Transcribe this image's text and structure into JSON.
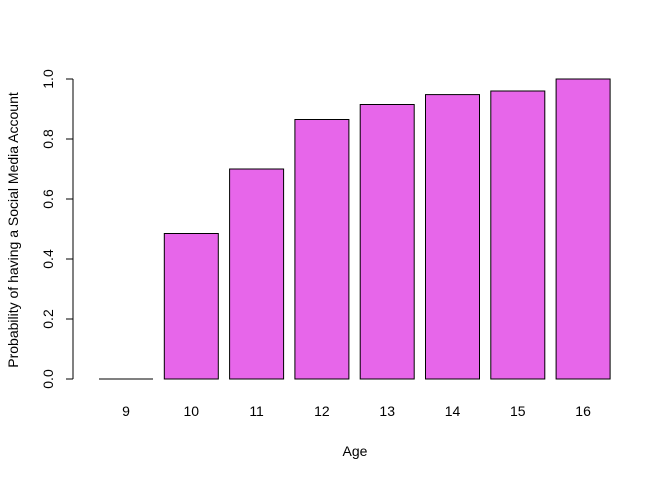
{
  "chart_data": {
    "type": "bar",
    "title": "",
    "xlabel": "Age",
    "ylabel": "Probability of having a Social Media Account",
    "categories": [
      "9",
      "10",
      "11",
      "12",
      "13",
      "14",
      "15",
      "16"
    ],
    "values": [
      0.0,
      0.485,
      0.7,
      0.865,
      0.915,
      0.948,
      0.96,
      1.0
    ],
    "ylim": [
      0,
      1
    ],
    "yticks": [
      0.0,
      0.2,
      0.4,
      0.6,
      0.8,
      1.0
    ],
    "ytick_labels": [
      "0.0",
      "0.2",
      "0.4",
      "0.6",
      "0.8",
      "1.0"
    ],
    "bar_color": "#E766EA",
    "bar_border_color": "#000000",
    "grid": false,
    "legend": "none"
  }
}
